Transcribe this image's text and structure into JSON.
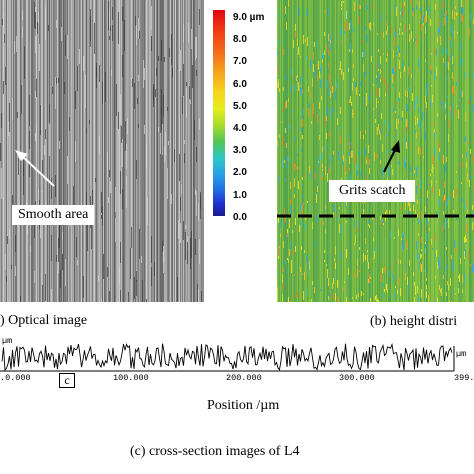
{
  "panel_a": {
    "label": "Smooth area",
    "caption": ") Optical image"
  },
  "panel_b": {
    "label": "Grits  scatch",
    "caption": "(b) height distri"
  },
  "colorbar": {
    "ticks": [
      "9.0 µm",
      "8.0",
      "7.0",
      "6.0",
      "5.0",
      "4.0",
      "3.0",
      "2.0",
      "1.0",
      "0.0"
    ],
    "colors": [
      "#e30613",
      "#f36a1a",
      "#f4a21e",
      "#f6d51c",
      "#a6dc2c",
      "#52c457",
      "#2cc7c6",
      "#27a0e5",
      "#2068e0",
      "#1a1a8c"
    ]
  },
  "panel_c": {
    "marker": "c",
    "x_ticks": [
      ".0.000",
      "100.000",
      "200.000",
      "300.000",
      "399."
    ],
    "y_unit_top": "µm",
    "y_unit_right": "µm",
    "xlabel": "Position /µm",
    "caption": "(c) cross-section images of  L4"
  }
}
